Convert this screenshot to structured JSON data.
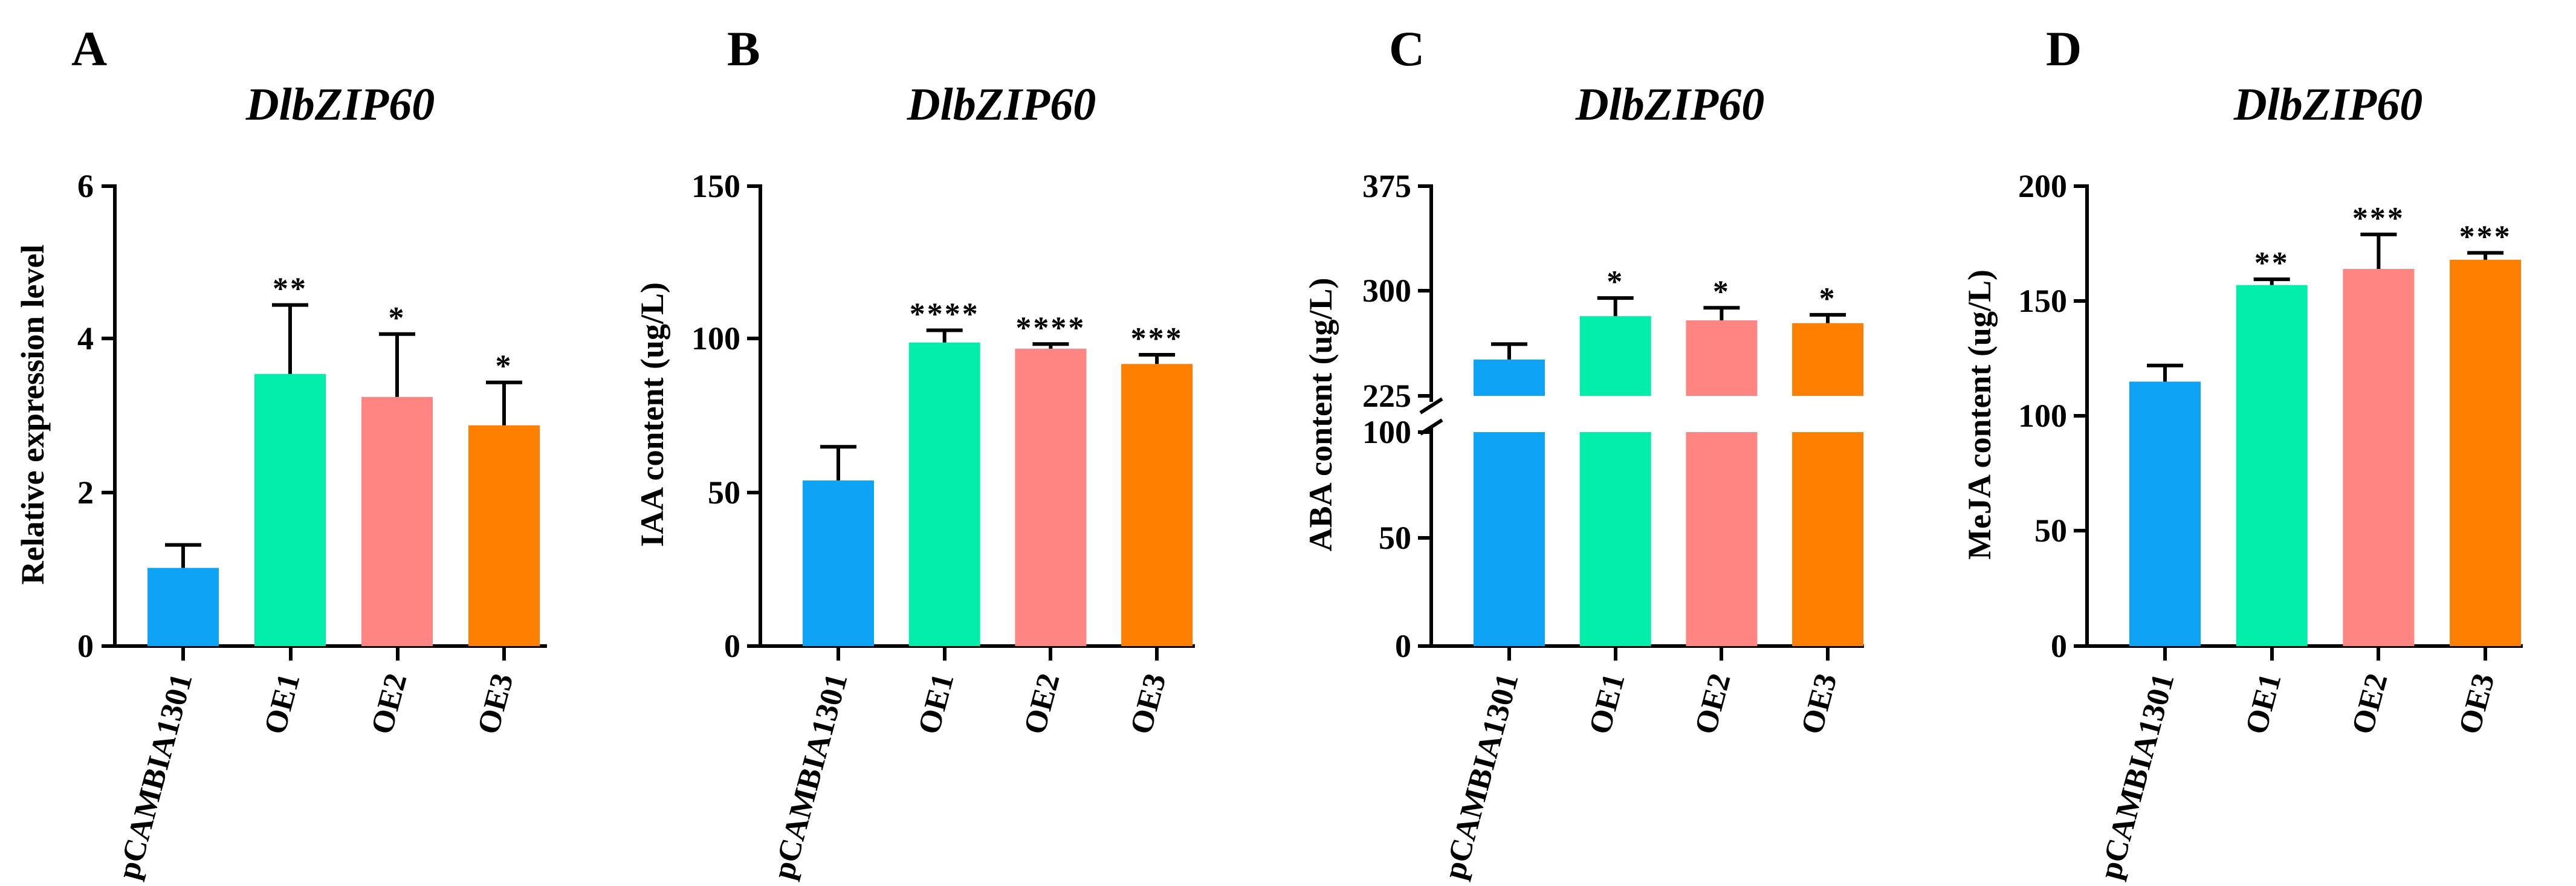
{
  "figure": {
    "panels": [
      {
        "letter": "A",
        "title": "DlbZIP60",
        "ylabel": "Relative expression level",
        "ticks": [
          "0",
          "2",
          "4",
          "6"
        ],
        "categories": [
          "pCAMBIA1301",
          "OE1",
          "OE2",
          "OE3"
        ],
        "significance": [
          "",
          "**",
          "*",
          "*"
        ]
      },
      {
        "letter": "B",
        "title": "DlbZIP60",
        "ylabel": "IAA content (ug/L)",
        "ticks": [
          "0",
          "50",
          "100",
          "150"
        ],
        "categories": [
          "pCAMBIA1301",
          "OE1",
          "OE2",
          "OE3"
        ],
        "significance": [
          "",
          "****",
          "****",
          "***"
        ]
      },
      {
        "letter": "C",
        "title": "DlbZIP60",
        "ylabel": "ABA content (ug/L)",
        "ticks": [
          "0",
          "50",
          "100",
          "225",
          "300",
          "375"
        ],
        "categories": [
          "pCAMBIA1301",
          "OE1",
          "OE2",
          "OE3"
        ],
        "significance": [
          "",
          "*",
          "*",
          "*"
        ]
      },
      {
        "letter": "D",
        "title": "DlbZIP60",
        "ylabel": "MeJA content (ug/L)",
        "ticks": [
          "0",
          "50",
          "100",
          "150",
          "200"
        ],
        "categories": [
          "pCAMBIA1301",
          "OE1",
          "OE2",
          "OE3"
        ],
        "significance": [
          "",
          "**",
          "***",
          "***"
        ]
      }
    ]
  },
  "chart_data": [
    {
      "type": "bar",
      "title": "DlbZIP60",
      "xlabel": "",
      "ylabel": "Relative expression level",
      "categories": [
        "pCAMBIA1301",
        "OE1",
        "OE2",
        "OE3"
      ],
      "values": [
        1.02,
        3.55,
        3.25,
        2.88
      ],
      "errors": [
        0.3,
        0.9,
        0.82,
        0.56
      ],
      "significance": [
        "",
        "**",
        "*",
        "*"
      ],
      "colors": [
        "#0fa3f5",
        "#00eeaa",
        "#ff8582",
        "#ff8000"
      ],
      "ylim": [
        0,
        6
      ],
      "yticks": [
        0,
        2,
        4,
        6
      ],
      "grid": false
    },
    {
      "type": "bar",
      "title": "DlbZIP60",
      "xlabel": "",
      "ylabel": "IAA content (ug/L)",
      "categories": [
        "pCAMBIA1301",
        "OE1",
        "OE2",
        "OE3"
      ],
      "values": [
        54,
        99,
        97,
        92
      ],
      "errors": [
        11,
        4,
        1.5,
        3
      ],
      "significance": [
        "",
        "****",
        "****",
        "***"
      ],
      "colors": [
        "#0fa3f5",
        "#00eeaa",
        "#ff8582",
        "#ff8000"
      ],
      "ylim": [
        0,
        150
      ],
      "yticks": [
        0,
        50,
        100,
        150
      ],
      "grid": false
    },
    {
      "type": "bar",
      "title": "DlbZIP60",
      "xlabel": "",
      "ylabel": "ABA content (ug/L)",
      "categories": [
        "pCAMBIA1301",
        "OE1",
        "OE2",
        "OE3"
      ],
      "values": [
        251,
        282,
        279,
        277
      ],
      "errors": [
        11,
        13,
        9,
        6
      ],
      "significance": [
        "",
        "*",
        "*",
        "*"
      ],
      "colors": [
        "#0fa3f5",
        "#00eeaa",
        "#ff8582",
        "#ff8000"
      ],
      "ylim": [
        0,
        375
      ],
      "axis_break": [
        100,
        225
      ],
      "yticks": [
        0,
        50,
        100,
        225,
        300,
        375
      ],
      "grid": false
    },
    {
      "type": "bar",
      "title": "DlbZIP60",
      "xlabel": "",
      "ylabel": "MeJA content (ug/L)",
      "categories": [
        "pCAMBIA1301",
        "OE1",
        "OE2",
        "OE3"
      ],
      "values": [
        115,
        157,
        164,
        168
      ],
      "errors": [
        7,
        2.5,
        15,
        3
      ],
      "significance": [
        "",
        "**",
        "***",
        "***"
      ],
      "colors": [
        "#0fa3f5",
        "#00eeaa",
        "#ff8582",
        "#ff8000"
      ],
      "ylim": [
        0,
        200
      ],
      "yticks": [
        0,
        50,
        100,
        150,
        200
      ],
      "grid": false
    }
  ]
}
